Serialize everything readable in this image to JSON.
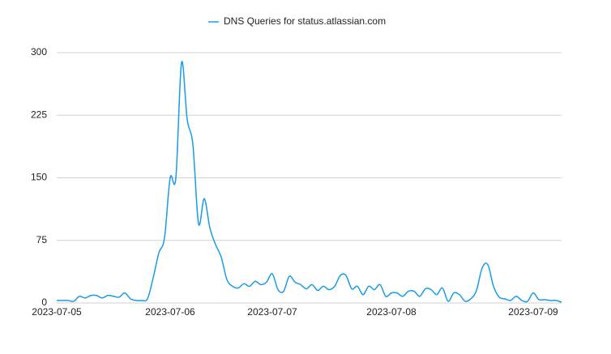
{
  "chart_data": {
    "type": "line",
    "categories": [
      "2023-07-05",
      null,
      null,
      null,
      null,
      null,
      null,
      null,
      null,
      null,
      null,
      null,
      null,
      null,
      null,
      null,
      null,
      null,
      null,
      null,
      "2023-07-06",
      null,
      null,
      null,
      null,
      null,
      null,
      null,
      null,
      null,
      null,
      null,
      null,
      null,
      null,
      null,
      null,
      null,
      "2023-07-07",
      null,
      null,
      null,
      null,
      null,
      null,
      null,
      null,
      null,
      null,
      null,
      null,
      null,
      null,
      null,
      null,
      null,
      null,
      null,
      null,
      "2023-07-08",
      null,
      null,
      null,
      null,
      null,
      null,
      null,
      null,
      null,
      null,
      null,
      null,
      null,
      null,
      null,
      null,
      null,
      null,
      null,
      null,
      null,
      null,
      null,
      null,
      "2023-07-09",
      null,
      null,
      null,
      null,
      null
    ],
    "series": [
      {
        "name": "DNS Queries for status.atlassian.com",
        "color": "#1a9be6",
        "values": [
          3,
          3,
          3,
          2,
          8,
          6,
          9,
          9,
          6,
          9,
          8,
          7,
          12,
          5,
          3,
          3,
          5,
          30,
          60,
          78,
          150,
          150,
          288,
          220,
          190,
          95,
          125,
          90,
          70,
          55,
          28,
          20,
          18,
          23,
          20,
          26,
          22,
          25,
          35,
          16,
          14,
          32,
          25,
          22,
          17,
          22,
          15,
          20,
          16,
          20,
          33,
          33,
          17,
          20,
          10,
          20,
          16,
          22,
          8,
          12,
          12,
          8,
          14,
          14,
          8,
          17,
          16,
          10,
          18,
          2,
          12,
          10,
          2,
          5,
          15,
          42,
          46,
          20,
          7,
          5,
          3,
          8,
          3,
          2,
          12,
          4,
          4,
          3,
          3,
          1
        ]
      }
    ],
    "ylim": [
      0,
      300
    ],
    "yticks": [
      0,
      75,
      150,
      225,
      300
    ],
    "grid": true,
    "legend": "top"
  }
}
